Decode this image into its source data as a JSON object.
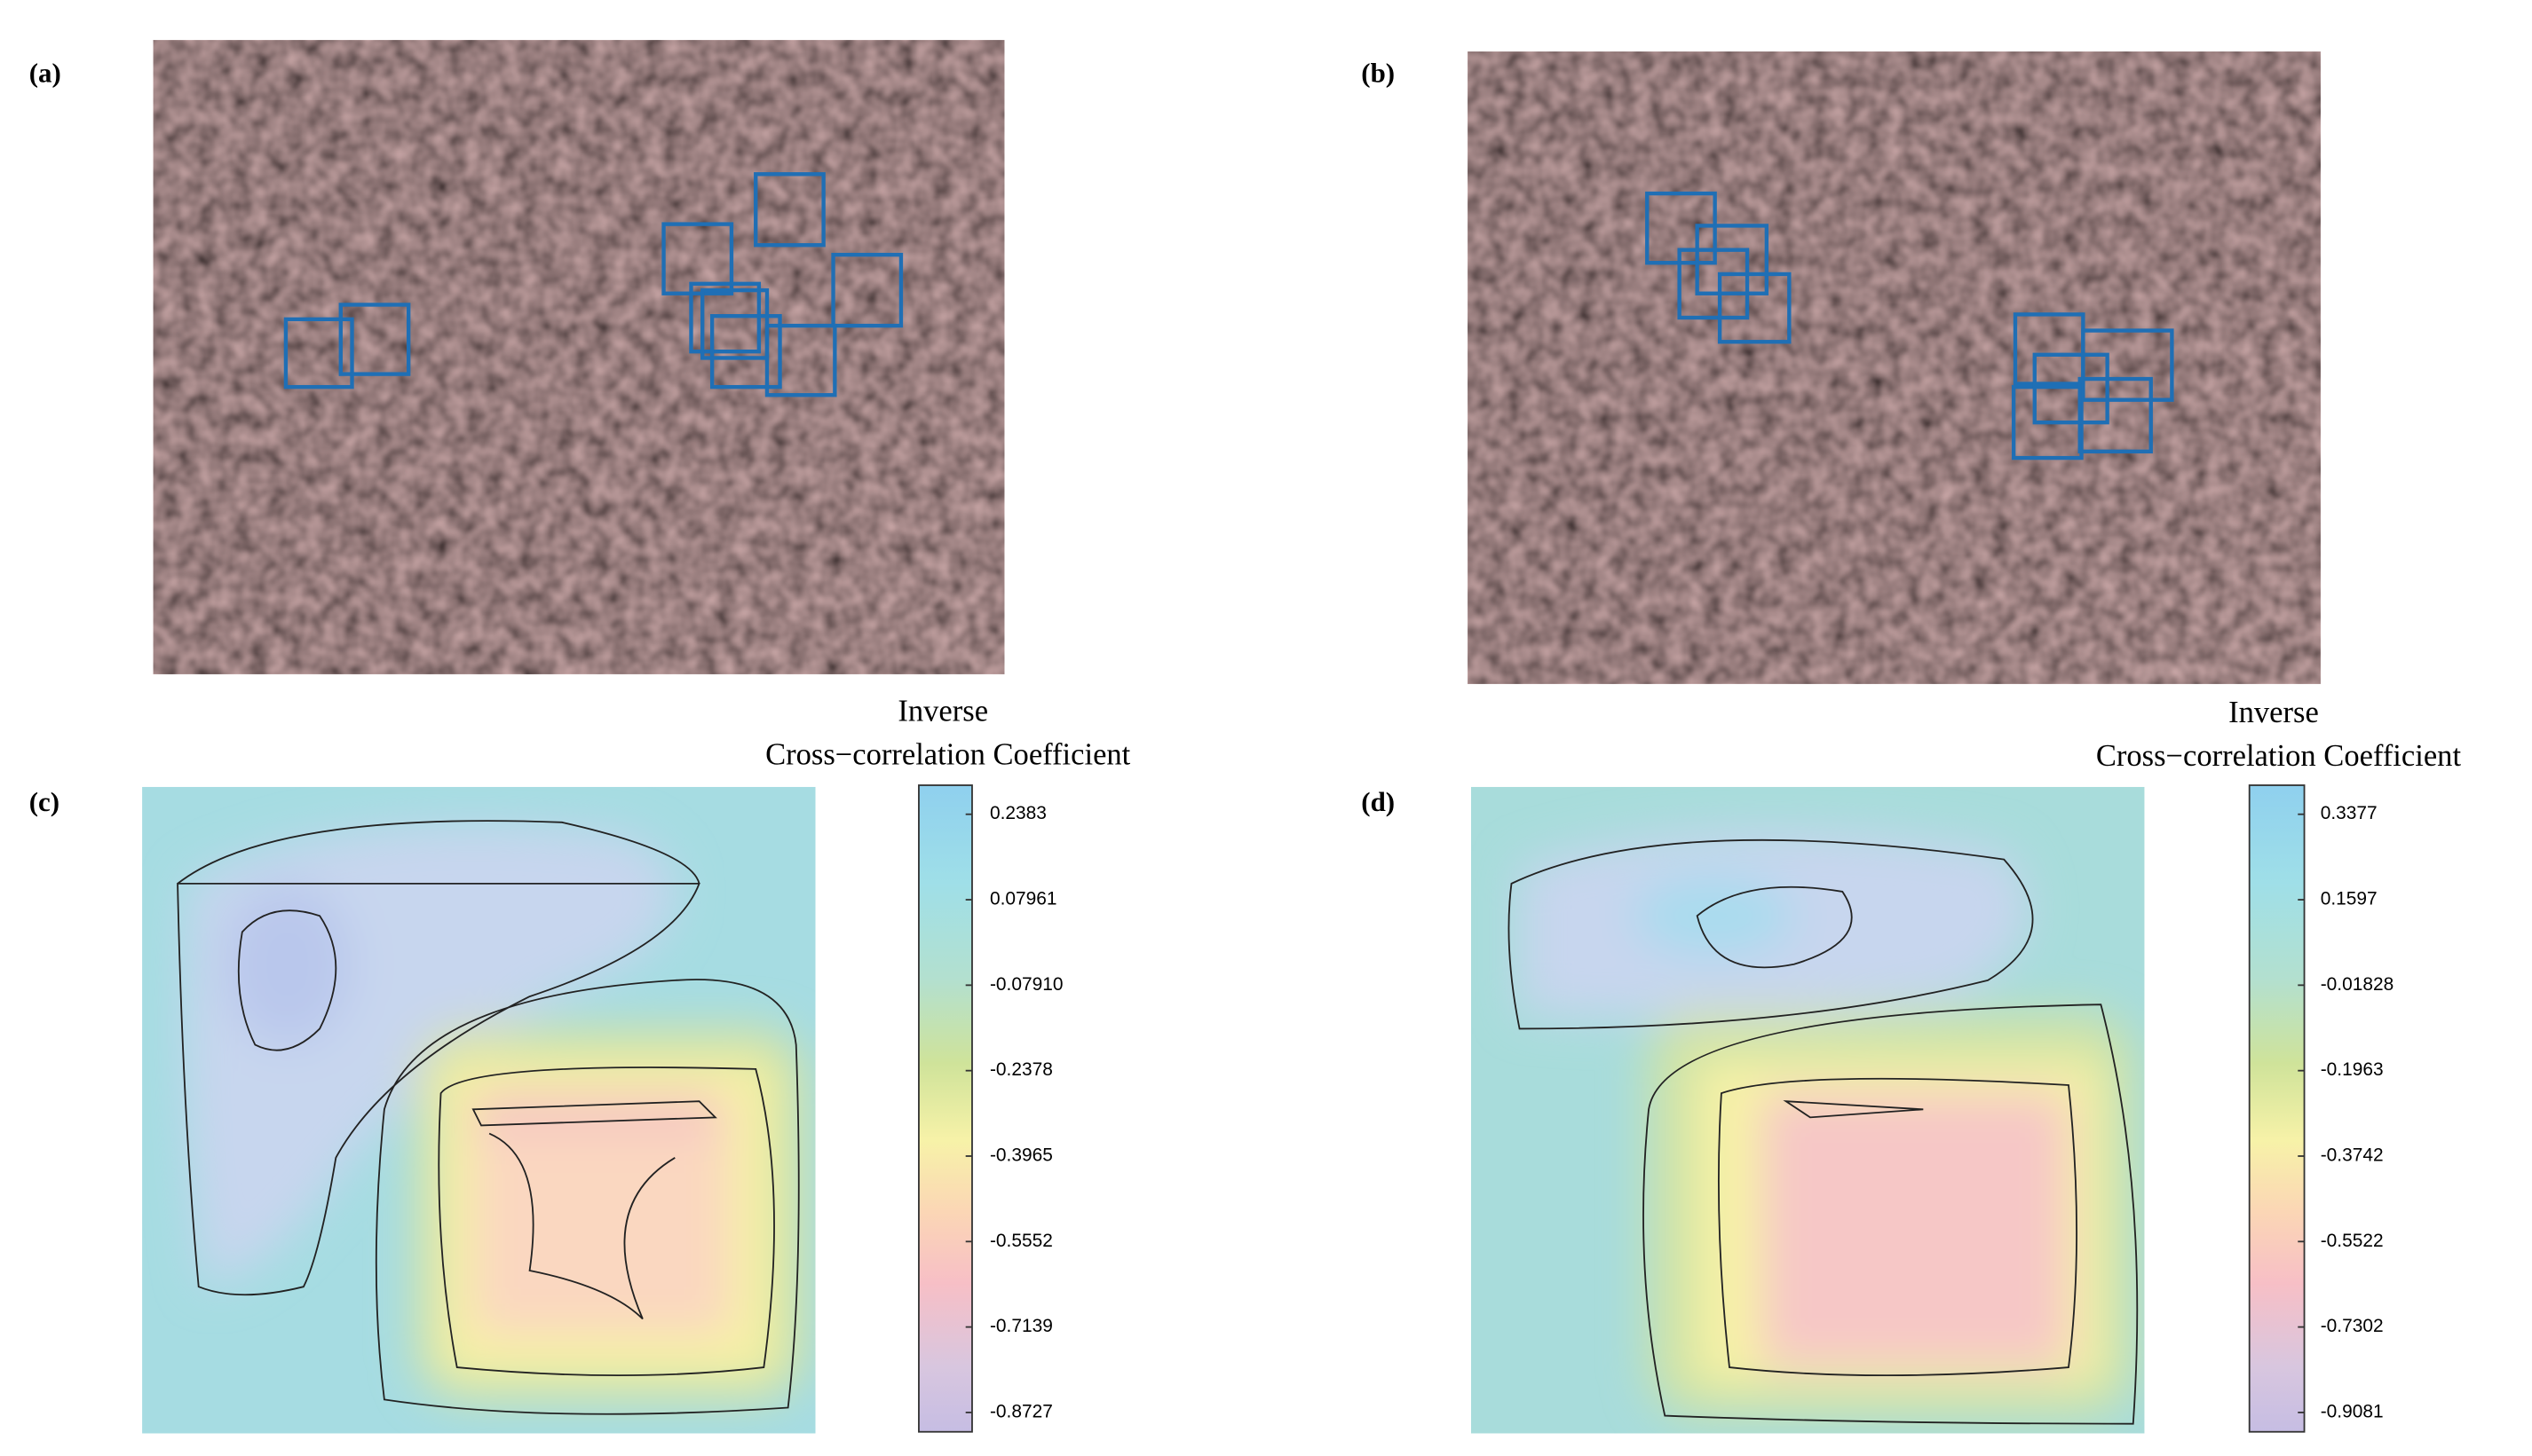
{
  "panels": [
    {
      "label": "(a)"
    },
    {
      "label": "(b)"
    },
    {
      "label": "(c)",
      "colorbar": {
        "title": [
          "Inverse",
          "Cross−correlation Coefficient"
        ],
        "ticks": [
          "0.2383",
          "0.07961",
          "-0.07910",
          "-0.2378",
          "-0.3965",
          "-0.5552",
          "-0.7139",
          "-0.8727"
        ]
      }
    },
    {
      "label": "(d)",
      "colorbar": {
        "title": [
          "Inverse",
          "Cross−correlation Coefficient"
        ],
        "ticks": [
          "0.3377",
          "0.1597",
          "-0.01828",
          "-0.1963",
          "-0.3742",
          "-0.5522",
          "-0.7302",
          "-0.9081"
        ]
      }
    }
  ]
}
